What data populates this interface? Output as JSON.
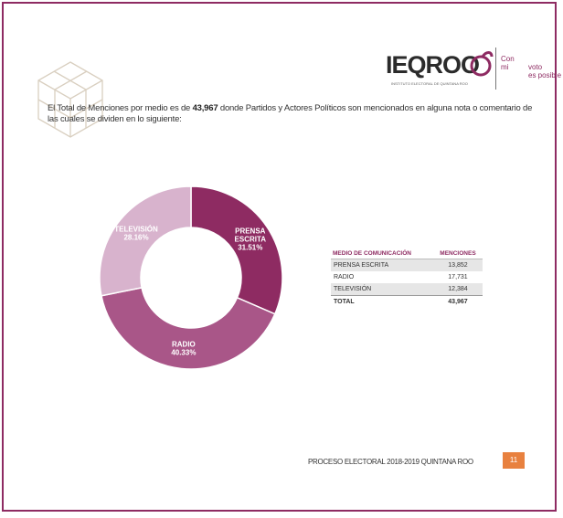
{
  "header": {
    "logo_text": "IEQROO",
    "logo_subtitle": "INSTITUTO ELECTORAL DE QUINTANA ROO",
    "slogan": [
      "Con",
      "mi",
      "voto",
      "es posible"
    ]
  },
  "intro": {
    "before": "El Total de Menciones por medio es de ",
    "total": "43,967",
    "after": " donde Partidos y Actores Políticos son mencionados en alguna nota o comentario de las cuales se dividen en lo siguiente:"
  },
  "chart_data": {
    "type": "pie",
    "donut": true,
    "slices": [
      {
        "label": "PRENSA ESCRITA",
        "label_lines": [
          "PRENSA",
          "ESCRITA"
        ],
        "percent_text": "31.51%",
        "value": 13852,
        "color": "#8e2b62"
      },
      {
        "label": "RADIO",
        "label_lines": [
          "RADIO"
        ],
        "percent_text": "40.33%",
        "value": 17731,
        "color": "#a95688"
      },
      {
        "label": "TELEVISION",
        "label_lines": [
          "TELEVISIÓN"
        ],
        "percent_text": "28.16%",
        "value": 12384,
        "color": "#d8b3cd"
      }
    ],
    "legend": "none"
  },
  "table": {
    "headers": [
      "MEDIO DE COMUNICACIÓN",
      "MENCIONES"
    ],
    "rows": [
      {
        "medio": "PRENSA ESCRITA",
        "menciones": "13,852"
      },
      {
        "medio": "RADIO",
        "menciones": "17,731"
      },
      {
        "medio": "TELEVISIÓN",
        "menciones": "12,384"
      }
    ],
    "total": {
      "medio": "TOTAL",
      "menciones": "43,967"
    }
  },
  "footer": {
    "text": "PROCESO ELECTORAL 2018-2019 QUINTANA ROO",
    "page": "11"
  },
  "colors": {
    "accent": "#8e2b62",
    "page_badge": "#e8813f"
  }
}
